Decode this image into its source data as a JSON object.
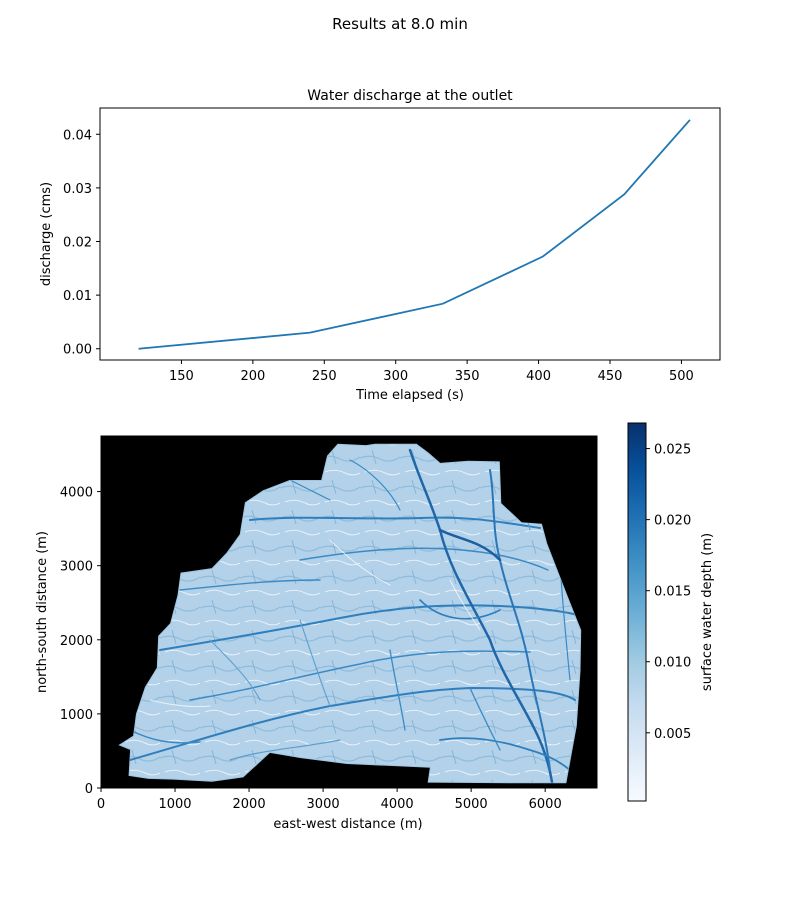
{
  "suptitle": "Results at 8.0 min",
  "colors": {
    "line": "#1f77b4",
    "background_mask": "#000000",
    "cmap_low": "#f7fbff",
    "cmap_mid": "#9ecae1",
    "cmap_high": "#08306b"
  },
  "chart_data": [
    {
      "type": "line",
      "title": "Water discharge at the outlet",
      "xlabel": "Time elapsed (s)",
      "ylabel": "discharge (cms)",
      "xlim": [
        93,
        527
      ],
      "ylim": [
        -0.0021,
        0.0449
      ],
      "xticks": [
        150,
        200,
        250,
        300,
        350,
        400,
        450,
        500
      ],
      "yticks": [
        0.0,
        0.01,
        0.02,
        0.03,
        0.04
      ],
      "ytick_labels": [
        "0.00",
        "0.01",
        "0.02",
        "0.03",
        "0.04"
      ],
      "grid": false,
      "series": [
        {
          "x": [
            120,
            240,
            333,
            403,
            460,
            506
          ],
          "y": [
            0.0,
            0.003,
            0.0084,
            0.0172,
            0.0288,
            0.0427
          ]
        }
      ]
    },
    {
      "type": "heatmap",
      "xlabel": "east-west distance (m)",
      "ylabel": "north-south distance (m)",
      "xlim": [
        0,
        6700
      ],
      "ylim": [
        0,
        4750
      ],
      "xticks": [
        0,
        1000,
        2000,
        3000,
        4000,
        5000,
        6000
      ],
      "yticks": [
        0,
        1000,
        2000,
        3000,
        4000
      ],
      "colormap": "Blues",
      "outside_watershed": "black",
      "colorbar": {
        "label": "surface water depth (m)",
        "range": [
          0.0002,
          0.0268
        ],
        "ticks": [
          0.005,
          0.01,
          0.015,
          0.02,
          0.025
        ],
        "tick_labels": [
          "0.005",
          "0.010",
          "0.015",
          "0.020",
          "0.025"
        ]
      },
      "watershed_boundary": [
        [
          250,
          580
        ],
        [
          400,
          520
        ],
        [
          380,
          170
        ],
        [
          640,
          130
        ],
        [
          980,
          120
        ],
        [
          1500,
          90
        ],
        [
          1920,
          150
        ],
        [
          2280,
          480
        ],
        [
          2700,
          410
        ],
        [
          3320,
          330
        ],
        [
          4450,
          280
        ],
        [
          4420,
          80
        ],
        [
          5600,
          70
        ],
        [
          6280,
          70
        ],
        [
          6420,
          840
        ],
        [
          6470,
          1580
        ],
        [
          6480,
          2130
        ],
        [
          6300,
          2580
        ],
        [
          6020,
          3300
        ],
        [
          5950,
          3560
        ],
        [
          5680,
          3580
        ],
        [
          5400,
          3840
        ],
        [
          5380,
          4400
        ],
        [
          4960,
          4410
        ],
        [
          4580,
          4380
        ],
        [
          4420,
          4520
        ],
        [
          4260,
          4640
        ],
        [
          3700,
          4640
        ],
        [
          3580,
          4620
        ],
        [
          3200,
          4640
        ],
        [
          3060,
          4480
        ],
        [
          2980,
          4150
        ],
        [
          2550,
          4150
        ],
        [
          2190,
          4010
        ],
        [
          1950,
          3850
        ],
        [
          1880,
          3420
        ],
        [
          1700,
          3170
        ],
        [
          1500,
          2960
        ],
        [
          1080,
          2900
        ],
        [
          1040,
          2600
        ],
        [
          940,
          2220
        ],
        [
          780,
          2050
        ],
        [
          760,
          1620
        ],
        [
          600,
          1360
        ],
        [
          480,
          1000
        ],
        [
          440,
          700
        ],
        [
          250,
          580
        ]
      ]
    }
  ]
}
